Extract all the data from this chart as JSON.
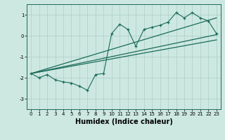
{
  "xlabel": "Humidex (Indice chaleur)",
  "bg_color": "#cde8e0",
  "grid_color": "#aacfc7",
  "line_color": "#1a6b5a",
  "xlim": [
    -0.5,
    23.5
  ],
  "ylim": [
    -3.5,
    1.5
  ],
  "yticks": [
    -3,
    -2,
    -1,
    0,
    1
  ],
  "xticks": [
    0,
    1,
    2,
    3,
    4,
    5,
    6,
    7,
    8,
    9,
    10,
    11,
    12,
    13,
    14,
    15,
    16,
    17,
    18,
    19,
    20,
    21,
    22,
    23
  ],
  "data_y": [
    -1.8,
    -2.0,
    -1.85,
    -2.1,
    -2.2,
    -2.25,
    -2.4,
    -2.6,
    -1.85,
    -1.8,
    0.1,
    0.55,
    0.3,
    -0.5,
    0.3,
    0.4,
    0.5,
    0.65,
    1.1,
    0.85,
    1.1,
    0.85,
    0.7,
    0.1
  ],
  "line1_x": [
    0,
    23
  ],
  "line1_y": [
    -1.8,
    0.05
  ],
  "line2_x": [
    0,
    23
  ],
  "line2_y": [
    -1.8,
    -0.2
  ],
  "line3_x": [
    0,
    23
  ],
  "line3_y": [
    -1.8,
    0.85
  ]
}
